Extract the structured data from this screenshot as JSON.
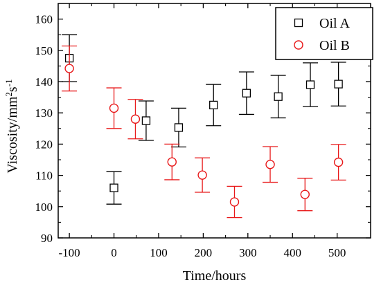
{
  "chart_data": {
    "type": "scatter",
    "xlabel": "Time/hours",
    "ylabel_parts": {
      "base": "Viscosity/mm",
      "sup1": "2",
      "mid": "s",
      "sup2": "-1"
    },
    "xlim": [
      -125,
      575
    ],
    "ylim": [
      90,
      165
    ],
    "xticks": [
      -100,
      0,
      100,
      200,
      300,
      400,
      500
    ],
    "yticks": [
      90,
      100,
      110,
      120,
      130,
      140,
      150,
      160
    ],
    "legend_position": "top-right",
    "series": [
      {
        "name": "Oil A",
        "marker": "square",
        "color": "#000000",
        "points": [
          {
            "x": -100,
            "y": 147.5,
            "err": 7.5
          },
          {
            "x": 0,
            "y": 106,
            "err": 5.2
          },
          {
            "x": 72,
            "y": 127.5,
            "err": 6.3
          },
          {
            "x": 145,
            "y": 125.3,
            "err": 6.2
          },
          {
            "x": 223,
            "y": 132.5,
            "err": 6.6
          },
          {
            "x": 297,
            "y": 136.3,
            "err": 6.8
          },
          {
            "x": 368,
            "y": 135.2,
            "err": 6.8
          },
          {
            "x": 440,
            "y": 139,
            "err": 7
          },
          {
            "x": 503,
            "y": 139.2,
            "err": 7
          }
        ]
      },
      {
        "name": "Oil B",
        "marker": "circle",
        "color": "#e8191a",
        "points": [
          {
            "x": -100,
            "y": 144.2,
            "err": 7.2
          },
          {
            "x": 0,
            "y": 131.5,
            "err": 6.5
          },
          {
            "x": 48,
            "y": 128,
            "err": 6.3
          },
          {
            "x": 130,
            "y": 114.3,
            "err": 5.7
          },
          {
            "x": 198,
            "y": 110.1,
            "err": 5.5
          },
          {
            "x": 270,
            "y": 101.5,
            "err": 5.0
          },
          {
            "x": 350,
            "y": 113.5,
            "err": 5.7
          },
          {
            "x": 428,
            "y": 103.9,
            "err": 5.2
          },
          {
            "x": 503,
            "y": 114.2,
            "err": 5.7
          }
        ]
      }
    ]
  }
}
